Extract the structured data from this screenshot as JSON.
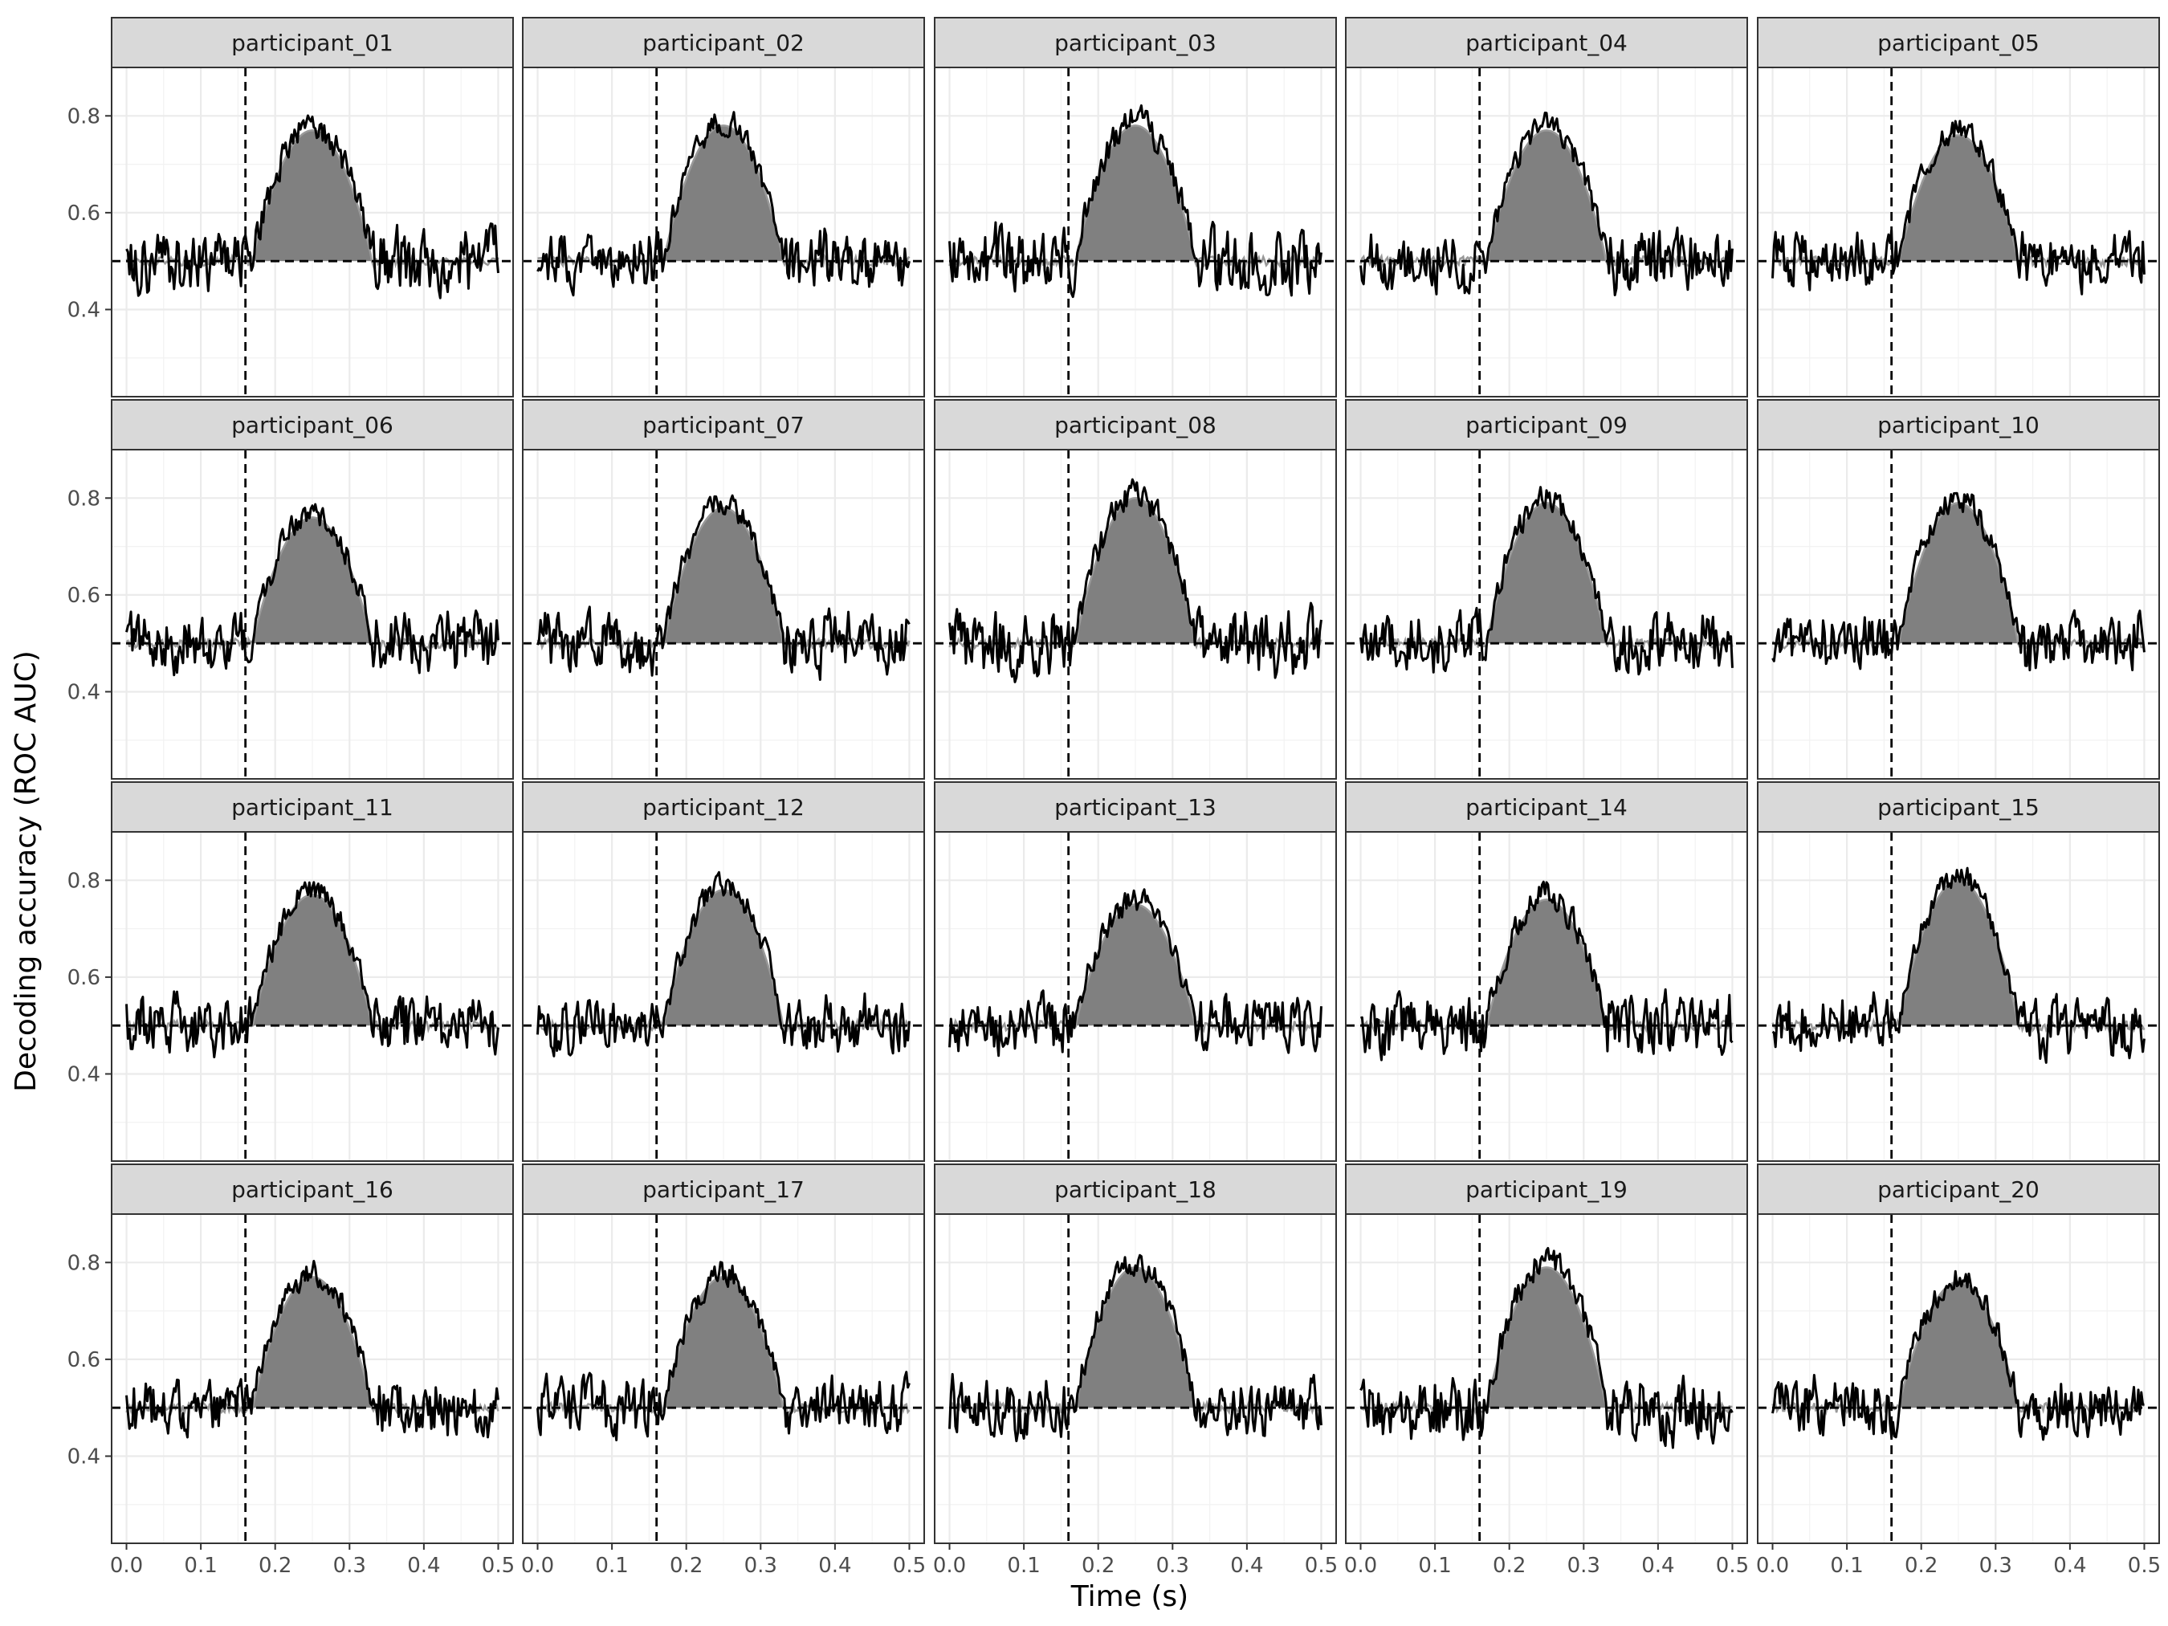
{
  "chart_data": {
    "type": "line",
    "layout": "facet-grid",
    "xlabel": "Time (s)",
    "ylabel": "Decoding accuracy (ROC AUC)",
    "xlim": [
      -0.02,
      0.52
    ],
    "ylim": [
      0.22,
      0.9
    ],
    "x_ticks": [
      0.0,
      0.1,
      0.2,
      0.3,
      0.4,
      0.5
    ],
    "x_tick_labels": [
      "0.0",
      "0.1",
      "0.2",
      "0.3",
      "0.4",
      "0.5"
    ],
    "y_ticks": [
      0.4,
      0.6,
      0.8
    ],
    "y_tick_labels": [
      "0.4",
      "0.6",
      "0.8"
    ],
    "reference_lines": {
      "chance_level": 0.5,
      "onset_time": 0.16
    },
    "grid": true,
    "colors": {
      "observed_line": "#000000",
      "model_fill": "#808080",
      "model_line": "#999999",
      "strip_bg": "#d9d9d9",
      "grid": "#ebebeb"
    },
    "series_note_hidden": true,
    "panels": [
      {
        "label": "participant_01",
        "peak": 0.77,
        "noise": 0.07,
        "seed": 1
      },
      {
        "label": "participant_02",
        "peak": 0.78,
        "noise": 0.06,
        "seed": 2
      },
      {
        "label": "participant_03",
        "peak": 0.78,
        "noise": 0.07,
        "seed": 3
      },
      {
        "label": "participant_04",
        "peak": 0.77,
        "noise": 0.06,
        "seed": 4
      },
      {
        "label": "participant_05",
        "peak": 0.76,
        "noise": 0.06,
        "seed": 5
      },
      {
        "label": "participant_06",
        "peak": 0.76,
        "noise": 0.06,
        "seed": 6
      },
      {
        "label": "participant_07",
        "peak": 0.78,
        "noise": 0.06,
        "seed": 7
      },
      {
        "label": "participant_08",
        "peak": 0.8,
        "noise": 0.07,
        "seed": 8
      },
      {
        "label": "participant_09",
        "peak": 0.79,
        "noise": 0.06,
        "seed": 9
      },
      {
        "label": "participant_10",
        "peak": 0.79,
        "noise": 0.06,
        "seed": 10
      },
      {
        "label": "participant_11",
        "peak": 0.77,
        "noise": 0.06,
        "seed": 11
      },
      {
        "label": "participant_12",
        "peak": 0.78,
        "noise": 0.06,
        "seed": 12
      },
      {
        "label": "participant_13",
        "peak": 0.75,
        "noise": 0.06,
        "seed": 13
      },
      {
        "label": "participant_14",
        "peak": 0.76,
        "noise": 0.07,
        "seed": 14
      },
      {
        "label": "participant_15",
        "peak": 0.8,
        "noise": 0.06,
        "seed": 15
      },
      {
        "label": "participant_16",
        "peak": 0.77,
        "noise": 0.06,
        "seed": 16
      },
      {
        "label": "participant_17",
        "peak": 0.77,
        "noise": 0.06,
        "seed": 17
      },
      {
        "label": "participant_18",
        "peak": 0.79,
        "noise": 0.06,
        "seed": 18
      },
      {
        "label": "participant_19",
        "peak": 0.79,
        "noise": 0.07,
        "seed": 19
      },
      {
        "label": "participant_20",
        "peak": 0.76,
        "noise": 0.06,
        "seed": 20
      }
    ]
  }
}
